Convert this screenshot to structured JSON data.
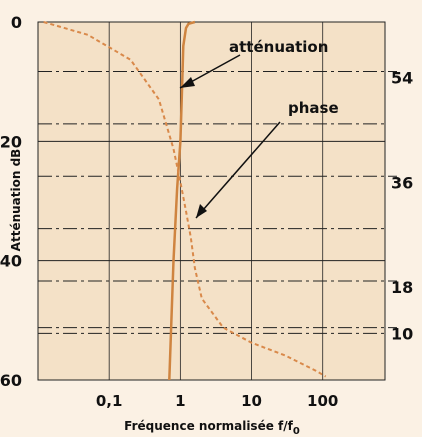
{
  "chart_data": {
    "type": "line",
    "ylabel": "Atténuation dB",
    "xlabel": "Fréquence normalisée f/f",
    "xlabel_sub": "0",
    "xscale": "log",
    "xlim": [
      0.01,
      750
    ],
    "xticks": [
      {
        "value": 0.1,
        "label": "0,1"
      },
      1,
      10,
      100
    ],
    "ylim": [
      0,
      60
    ],
    "y_inverted": true,
    "yticks": [
      0,
      20,
      40,
      60
    ],
    "y2lim": [
      1,
      62.5
    ],
    "y2ticks": [
      54,
      36,
      18,
      10
    ],
    "y2minor": [
      45,
      27,
      9
    ],
    "grid": true,
    "series": [
      {
        "name": "atténuation",
        "color": "#cf8440",
        "style": "solid",
        "x": [
          0.7,
          0.8,
          0.9,
          1,
          1.05,
          1.1,
          1.2,
          1.3,
          1.6
        ],
        "values": [
          60,
          40,
          28,
          20,
          12,
          4,
          1,
          0.3,
          0
        ]
      },
      {
        "name": "phase",
        "color": "#d9894a",
        "style": "dashed",
        "axis": "y2",
        "x": [
          0.012,
          0.05,
          0.2,
          0.5,
          0.8,
          1,
          1.2,
          1.4,
          1.6,
          2,
          4,
          10,
          30,
          80,
          110
        ],
        "values": [
          62.5,
          60.3,
          56,
          49.2,
          40.7,
          35,
          30,
          25.5,
          20.2,
          15,
          10,
          7.4,
          5.2,
          2.6,
          1.6
        ]
      }
    ]
  }
}
